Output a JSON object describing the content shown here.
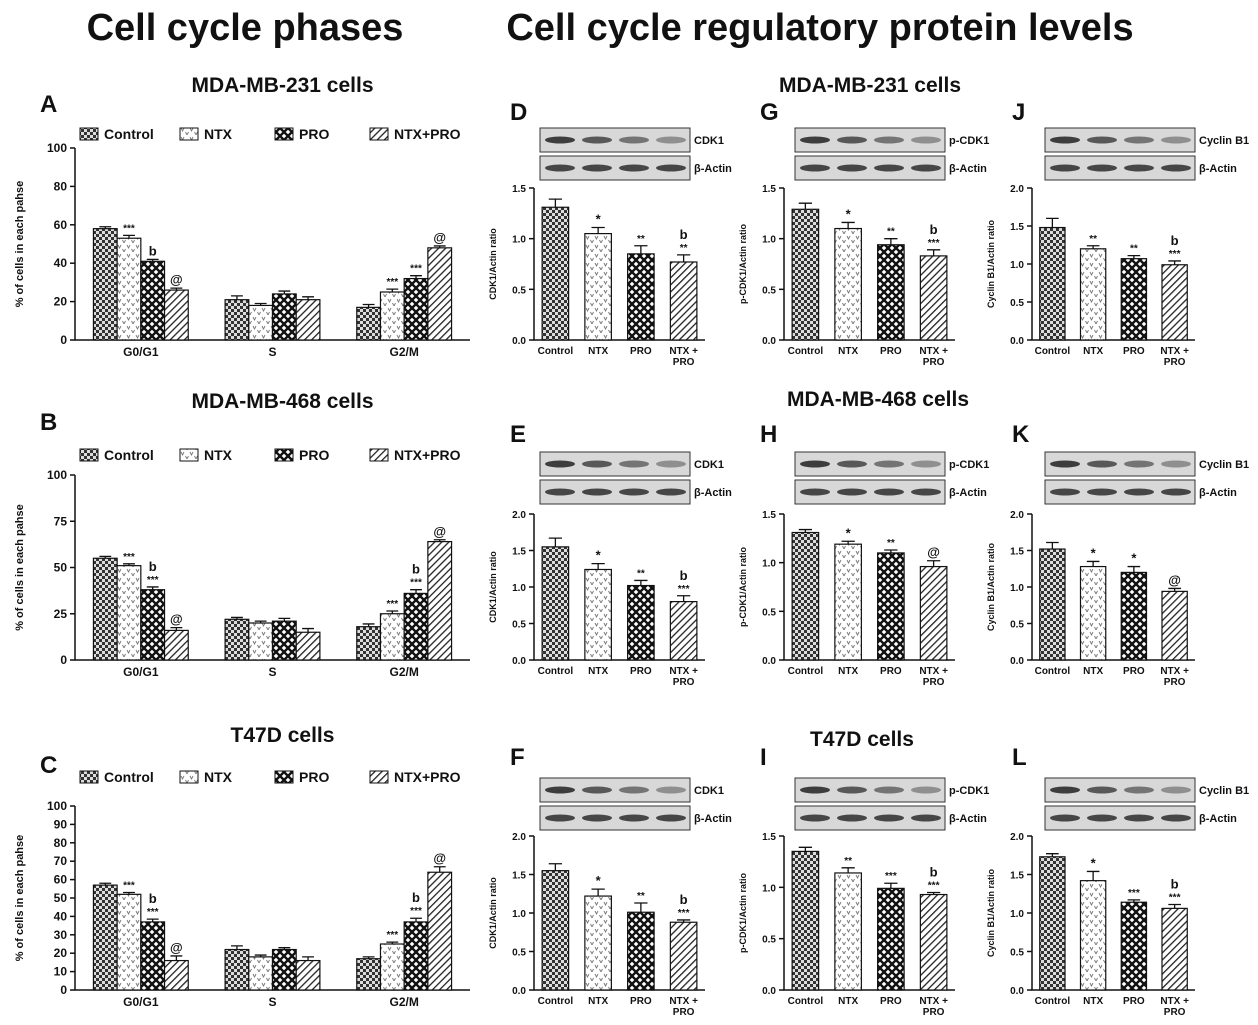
{
  "headings": [
    "Cell cycle phases",
    "Cell cycle regulatory protein levels"
  ],
  "row_titles": [
    "MDA-MB-231 cells",
    "MDA-MB-468 cells",
    "T47D cells"
  ],
  "chart_data": [
    {
      "type": "grouped_bar",
      "panel": "A",
      "title": "MDA-MB-231 cells",
      "ylabel": "% of cells in each pahse",
      "categories": [
        "G0/G1",
        "S",
        "G2/M"
      ],
      "ylim": [
        0,
        100
      ],
      "yticks": [
        0,
        20,
        40,
        60,
        80,
        100
      ],
      "series": [
        {
          "name": "Control",
          "pattern": "checker",
          "values": [
            58,
            21,
            17
          ],
          "errors": [
            1,
            2,
            1.5
          ],
          "labels": [
            null,
            null,
            null
          ]
        },
        {
          "name": "NTX",
          "pattern": "vees",
          "values": [
            53,
            18,
            25
          ],
          "errors": [
            1.5,
            1,
            1.5
          ],
          "labels": [
            [
              "***"
            ],
            null,
            [
              "***"
            ]
          ]
        },
        {
          "name": "PRO",
          "pattern": "cross",
          "values": [
            41,
            24,
            32
          ],
          "errors": [
            1,
            1.5,
            1.5
          ],
          "labels": [
            [
              "b"
            ],
            null,
            [
              "***"
            ]
          ]
        },
        {
          "name": "NTX+PRO",
          "pattern": "stripes",
          "values": [
            26,
            21,
            48
          ],
          "errors": [
            1,
            1.5,
            1
          ],
          "labels": [
            [
              "@"
            ],
            null,
            [
              "@"
            ]
          ]
        }
      ]
    },
    {
      "type": "grouped_bar",
      "panel": "B",
      "title": "MDA-MB-468 cells",
      "ylabel": "% of cells in each pahse",
      "categories": [
        "G0/G1",
        "S",
        "G2/M"
      ],
      "ylim": [
        0,
        100
      ],
      "yticks": [
        0,
        25,
        50,
        75,
        100
      ],
      "series": [
        {
          "name": "Control",
          "pattern": "checker",
          "values": [
            55,
            22,
            18
          ],
          "errors": [
            1,
            1,
            1.5
          ],
          "labels": [
            null,
            null,
            null
          ]
        },
        {
          "name": "NTX",
          "pattern": "vees",
          "values": [
            51,
            20,
            25
          ],
          "errors": [
            1,
            1,
            1.5
          ],
          "labels": [
            [
              "***"
            ],
            null,
            [
              "***"
            ]
          ]
        },
        {
          "name": "PRO",
          "pattern": "cross",
          "values": [
            38,
            21,
            36
          ],
          "errors": [
            1.5,
            1.5,
            2
          ],
          "labels": [
            [
              "b",
              "***"
            ],
            null,
            [
              "b",
              "***"
            ]
          ]
        },
        {
          "name": "NTX+PRO",
          "pattern": "stripes",
          "values": [
            16,
            15,
            64
          ],
          "errors": [
            1.5,
            2,
            1
          ],
          "labels": [
            [
              "@"
            ],
            null,
            [
              "@"
            ]
          ]
        }
      ]
    },
    {
      "type": "grouped_bar",
      "panel": "C",
      "title": "T47D cells",
      "ylabel": "% of cells in each pahse",
      "categories": [
        "G0/G1",
        "S",
        "G2/M"
      ],
      "ylim": [
        0,
        100
      ],
      "yticks": [
        0,
        10,
        20,
        30,
        40,
        50,
        60,
        70,
        80,
        90,
        100
      ],
      "series": [
        {
          "name": "Control",
          "pattern": "checker",
          "values": [
            57,
            22,
            17
          ],
          "errors": [
            1,
            2,
            1
          ],
          "labels": [
            null,
            null,
            null
          ]
        },
        {
          "name": "NTX",
          "pattern": "vees",
          "values": [
            52,
            18,
            25
          ],
          "errors": [
            1,
            1,
            1
          ],
          "labels": [
            [
              "***"
            ],
            null,
            [
              "***"
            ]
          ]
        },
        {
          "name": "PRO",
          "pattern": "cross",
          "values": [
            37,
            22,
            37
          ],
          "errors": [
            1.5,
            1,
            2
          ],
          "labels": [
            [
              "b",
              "***"
            ],
            null,
            [
              "b",
              "***"
            ]
          ]
        },
        {
          "name": "NTX+PRO",
          "pattern": "stripes",
          "values": [
            16,
            16,
            64
          ],
          "errors": [
            2.5,
            2,
            3
          ],
          "labels": [
            [
              "@"
            ],
            null,
            [
              "@"
            ]
          ]
        }
      ]
    },
    {
      "type": "bar",
      "panel": "D",
      "blot_labels": [
        "CDK1",
        "β-Actin"
      ],
      "ylabel": "CDK1/Actin ratio",
      "categories": [
        "Control",
        "NTX",
        "PRO",
        "NTX +\nPRO"
      ],
      "patterns": [
        "checker",
        "vees",
        "cross",
        "stripes"
      ],
      "ylim": [
        0,
        1.5
      ],
      "yticks": [
        {
          "value": 0,
          "label": "0.0"
        },
        {
          "value": 0.5,
          "label": "0.5"
        },
        {
          "value": 1,
          "label": "1.0"
        },
        {
          "value": 1.5,
          "label": "1.5"
        }
      ],
      "values": [
        1.31,
        1.05,
        0.85,
        0.77
      ],
      "errors": [
        0.08,
        0.06,
        0.08,
        0.07
      ],
      "labels": [
        null,
        [
          "*"
        ],
        [
          "**"
        ],
        [
          "b",
          "**"
        ]
      ]
    },
    {
      "type": "bar",
      "panel": "E",
      "blot_labels": [
        "CDK1",
        "β-Actin"
      ],
      "ylabel": "CDK1/Actin ratio",
      "categories": [
        "Control",
        "NTX",
        "PRO",
        "NTX +\nPRO"
      ],
      "patterns": [
        "checker",
        "vees",
        "cross",
        "stripes"
      ],
      "ylim": [
        0,
        2
      ],
      "yticks": [
        {
          "value": 0,
          "label": "0.0"
        },
        {
          "value": 0.5,
          "label": "0.5"
        },
        {
          "value": 1,
          "label": "1.0"
        },
        {
          "value": 1.5,
          "label": "1.5"
        },
        {
          "value": 2,
          "label": "2.0"
        }
      ],
      "values": [
        1.55,
        1.24,
        1.02,
        0.8
      ],
      "errors": [
        0.12,
        0.08,
        0.07,
        0.08
      ],
      "labels": [
        null,
        [
          "*"
        ],
        [
          "**"
        ],
        [
          "b",
          "***"
        ]
      ]
    },
    {
      "type": "bar",
      "panel": "F",
      "blot_labels": [
        "CDK1",
        "β-Actin"
      ],
      "ylabel": "CDK1/Actin ratio",
      "categories": [
        "Control",
        "NTX",
        "PRO",
        "NTX +\nPRO"
      ],
      "patterns": [
        "checker",
        "vees",
        "cross",
        "stripes"
      ],
      "ylim": [
        0,
        2
      ],
      "yticks": [
        {
          "value": 0,
          "label": "0.0"
        },
        {
          "value": 0.5,
          "label": "0.5"
        },
        {
          "value": 1,
          "label": "1.0"
        },
        {
          "value": 1.5,
          "label": "1.5"
        },
        {
          "value": 2,
          "label": "2.0"
        }
      ],
      "values": [
        1.55,
        1.22,
        1.01,
        0.88
      ],
      "errors": [
        0.09,
        0.09,
        0.12,
        0.03
      ],
      "labels": [
        null,
        [
          "*"
        ],
        [
          "**"
        ],
        [
          "b",
          "***"
        ]
      ]
    },
    {
      "type": "bar",
      "panel": "G",
      "blot_labels": [
        "p-CDK1",
        "β-Actin"
      ],
      "ylabel": "p-CDK1/Actin ratio",
      "categories": [
        "Control",
        "NTX",
        "PRO",
        "NTX +\nPRO"
      ],
      "patterns": [
        "checker",
        "vees",
        "cross",
        "stripes"
      ],
      "ylim": [
        0,
        1.5
      ],
      "yticks": [
        {
          "value": 0,
          "label": "0.0"
        },
        {
          "value": 0.5,
          "label": "0.5"
        },
        {
          "value": 1,
          "label": "1.0"
        },
        {
          "value": 1.5,
          "label": "1.5"
        }
      ],
      "values": [
        1.29,
        1.1,
        0.94,
        0.83
      ],
      "errors": [
        0.06,
        0.06,
        0.06,
        0.06
      ],
      "labels": [
        null,
        [
          "*"
        ],
        [
          "**"
        ],
        [
          "b",
          "***"
        ]
      ]
    },
    {
      "type": "bar",
      "panel": "H",
      "blot_labels": [
        "p-CDK1",
        "β-Actin"
      ],
      "ylabel": "p-CDK1/Actin ratio",
      "categories": [
        "Control",
        "NTX",
        "PRO",
        "NTX +\nPRO"
      ],
      "patterns": [
        "checker",
        "vees",
        "cross",
        "stripes"
      ],
      "ylim": [
        0,
        1.5
      ],
      "yticks": [
        {
          "value": 0,
          "label": "0.0"
        },
        {
          "value": 0.5,
          "label": "0.5"
        },
        {
          "value": 1,
          "label": "1.0"
        },
        {
          "value": 1.5,
          "label": "1.5"
        }
      ],
      "values": [
        1.31,
        1.19,
        1.1,
        0.96
      ],
      "errors": [
        0.03,
        0.03,
        0.03,
        0.06
      ],
      "labels": [
        null,
        [
          "*"
        ],
        [
          "**"
        ],
        [
          "@"
        ]
      ]
    },
    {
      "type": "bar",
      "panel": "I",
      "blot_labels": [
        "p-CDK1",
        "β-Actin"
      ],
      "ylabel": "p-CDK1/Actin ratio",
      "categories": [
        "Control",
        "NTX",
        "PRO",
        "NTX +\nPRO"
      ],
      "patterns": [
        "checker",
        "vees",
        "cross",
        "stripes"
      ],
      "ylim": [
        0,
        1.5
      ],
      "yticks": [
        {
          "value": 0,
          "label": "0.0"
        },
        {
          "value": 0.5,
          "label": "0.5"
        },
        {
          "value": 1,
          "label": "1.0"
        },
        {
          "value": 1.5,
          "label": "1.5"
        }
      ],
      "values": [
        1.35,
        1.14,
        0.99,
        0.93
      ],
      "errors": [
        0.04,
        0.05,
        0.05,
        0.02
      ],
      "labels": [
        null,
        [
          "**"
        ],
        [
          "***"
        ],
        [
          "b",
          "***"
        ]
      ]
    },
    {
      "type": "bar",
      "panel": "J",
      "blot_labels": [
        "Cyclin B1",
        "β-Actin"
      ],
      "ylabel": "Cyclin B1/Actin ratio",
      "categories": [
        "Control",
        "NTX",
        "PRO",
        "NTX +\nPRO"
      ],
      "patterns": [
        "checker",
        "vees",
        "cross",
        "stripes"
      ],
      "ylim": [
        0,
        2
      ],
      "yticks": [
        {
          "value": 0,
          "label": "0.0"
        },
        {
          "value": 0.5,
          "label": "0.5"
        },
        {
          "value": 1,
          "label": "1.0"
        },
        {
          "value": 1.5,
          "label": "1.5"
        },
        {
          "value": 2,
          "label": "2.0"
        }
      ],
      "values": [
        1.48,
        1.2,
        1.07,
        0.99
      ],
      "errors": [
        0.12,
        0.04,
        0.04,
        0.05
      ],
      "labels": [
        null,
        [
          "**"
        ],
        [
          "**"
        ],
        [
          "b",
          "***"
        ]
      ]
    },
    {
      "type": "bar",
      "panel": "K",
      "blot_labels": [
        "Cyclin B1",
        "β-Actin"
      ],
      "ylabel": "Cyclin B1/Actin ratio",
      "categories": [
        "Control",
        "NTX",
        "PRO",
        "NTX +\nPRO"
      ],
      "patterns": [
        "checker",
        "vees",
        "cross",
        "stripes"
      ],
      "ylim": [
        0,
        2
      ],
      "yticks": [
        {
          "value": 0,
          "label": "0.0"
        },
        {
          "value": 0.5,
          "label": "0.5"
        },
        {
          "value": 1,
          "label": "1.0"
        },
        {
          "value": 1.5,
          "label": "1.5"
        },
        {
          "value": 2,
          "label": "2.0"
        }
      ],
      "values": [
        1.52,
        1.28,
        1.2,
        0.94
      ],
      "errors": [
        0.09,
        0.07,
        0.08,
        0.04
      ],
      "labels": [
        null,
        [
          "*"
        ],
        [
          "*"
        ],
        [
          "@"
        ]
      ]
    },
    {
      "type": "bar",
      "panel": "L",
      "blot_labels": [
        "Cyclin B1",
        "β-Actin"
      ],
      "ylabel": "Cyclin B1/Actin ratio",
      "categories": [
        "Control",
        "NTX",
        "PRO",
        "NTX +\nPRO"
      ],
      "patterns": [
        "checker",
        "vees",
        "cross",
        "stripes"
      ],
      "ylim": [
        0,
        2
      ],
      "yticks": [
        {
          "value": 0,
          "label": "0.0"
        },
        {
          "value": 0.5,
          "label": "0.5"
        },
        {
          "value": 1,
          "label": "1.0"
        },
        {
          "value": 1.5,
          "label": "1.5"
        },
        {
          "value": 2,
          "label": "2.0"
        }
      ],
      "values": [
        1.73,
        1.42,
        1.14,
        1.06
      ],
      "errors": [
        0.04,
        0.12,
        0.03,
        0.05
      ],
      "labels": [
        null,
        [
          "*"
        ],
        [
          "***"
        ],
        [
          "b",
          "***"
        ]
      ]
    }
  ]
}
